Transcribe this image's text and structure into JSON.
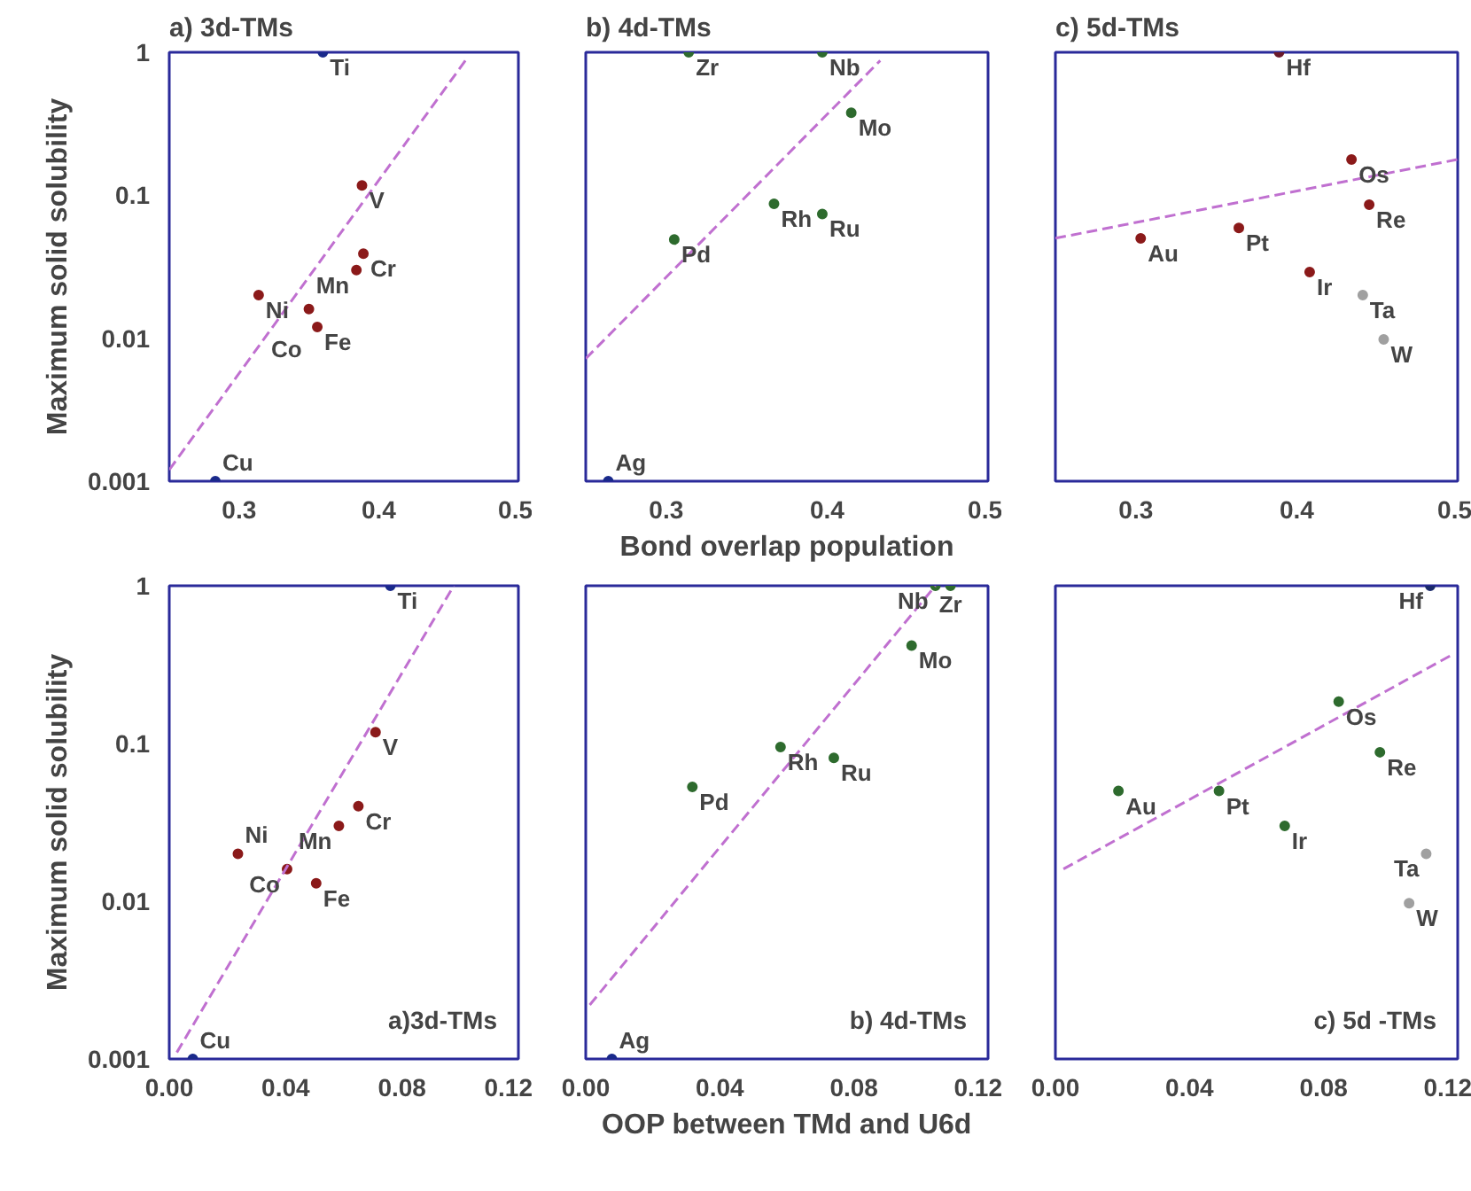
{
  "chart_data": [
    {
      "type": "scatter",
      "title": "a) 3d-TMs",
      "ylabel": "Maximum solid solubility",
      "log": true,
      "grid": false,
      "marker": "circle",
      "xlim": [
        0.25,
        0.5
      ],
      "xticks": [
        0.3,
        0.4,
        0.5
      ],
      "ylim": [
        0.001,
        1
      ],
      "yticks": [
        0.001,
        0.01,
        0.1,
        1
      ],
      "series": [
        {
          "x": [
            0.36,
            0.388,
            0.389,
            0.384,
            0.314,
            0.35,
            0.356,
            0.283
          ],
          "values": [
            1,
            0.117,
            0.039,
            0.03,
            0.02,
            0.016,
            0.012,
            0.001
          ],
          "colors": [
            "#1a2a8b",
            "#8b1a1a",
            "#8b1a1a",
            "#8b1a1a",
            "#8b1a1a",
            "#8b1a1a",
            "#8b1a1a",
            "#1a2a8b"
          ]
        },
        {
          "type": "line",
          "line_style": "dashed",
          "marker": "none",
          "color": "#c070d0",
          "x": [
            0.25,
            0.464
          ],
          "values": [
            0.0012,
            0.93
          ]
        }
      ],
      "annotations": [
        {
          "text": "Ti",
          "x": 0.36,
          "y": 1
        },
        {
          "text": "V",
          "x": 0.388,
          "y": 0.117
        },
        {
          "text": "Cr",
          "x": 0.389,
          "y": 0.039
        },
        {
          "text": "Mn",
          "x": 0.384,
          "y": 0.03
        },
        {
          "text": "Ni",
          "x": 0.314,
          "y": 0.02
        },
        {
          "text": "Co",
          "x": 0.35,
          "y": 0.016
        },
        {
          "text": "Fe",
          "x": 0.356,
          "y": 0.012
        },
        {
          "text": "Cu",
          "x": 0.283,
          "y": 0.001
        }
      ]
    },
    {
      "type": "scatter",
      "title": "b) 4d-TMs",
      "xlabel": "Bond overlap population",
      "log": true,
      "grid": false,
      "marker": "circle",
      "tick_labels": "x",
      "xlim": [
        0.25,
        0.5
      ],
      "xticks": [
        0.3,
        0.4,
        0.5
      ],
      "ylim": [
        0.001,
        1
      ],
      "yticks": [
        0.001,
        0.01,
        0.1,
        1
      ],
      "series": [
        {
          "x": [
            0.314,
            0.397,
            0.415,
            0.305,
            0.367,
            0.397,
            0.264
          ],
          "values": [
            1,
            1,
            0.377,
            0.049,
            0.087,
            0.074,
            0.001
          ],
          "colors": [
            "#2e6b2e",
            "#2e6b2e",
            "#2e6b2e",
            "#2e6b2e",
            "#2e6b2e",
            "#2e6b2e",
            "#1a2a8b"
          ]
        },
        {
          "type": "line",
          "line_style": "dashed",
          "marker": "none",
          "color": "#c070d0",
          "x": [
            0.25,
            0.433
          ],
          "values": [
            0.0072,
            0.875
          ]
        }
      ],
      "annotations": [
        {
          "text": "Zr",
          "x": 0.314,
          "y": 1
        },
        {
          "text": "Nb",
          "x": 0.397,
          "y": 1
        },
        {
          "text": "Mo",
          "x": 0.415,
          "y": 0.377
        },
        {
          "text": "Pd",
          "x": 0.305,
          "y": 0.049
        },
        {
          "text": "Rh",
          "x": 0.367,
          "y": 0.087
        },
        {
          "text": "Ru",
          "x": 0.397,
          "y": 0.074
        },
        {
          "text": "Ag",
          "x": 0.264,
          "y": 0.001
        }
      ]
    },
    {
      "type": "scatter",
      "title": "c) 5d-TMs",
      "log": true,
      "grid": false,
      "marker": "circle",
      "tick_labels": "x",
      "xlim": [
        0.25,
        0.5
      ],
      "xticks": [
        0.3,
        0.4,
        0.5
      ],
      "ylim": [
        0.001,
        1
      ],
      "yticks": [
        0.001,
        0.01,
        0.1,
        1
      ],
      "series": [
        {
          "x": [
            0.389,
            0.434,
            0.445,
            0.303,
            0.364,
            0.408,
            0.441,
            0.454
          ],
          "values": [
            1,
            0.178,
            0.086,
            0.05,
            0.059,
            0.029,
            0.02,
            0.0098
          ],
          "colors": [
            "#6b1a2a",
            "#8b1a1a",
            "#8b1a1a",
            "#8b1a1a",
            "#8b1a1a",
            "#8b1a1a",
            "#a0a0a0",
            "#a0a0a0"
          ]
        },
        {
          "type": "line",
          "line_style": "dashed",
          "marker": "none",
          "color": "#c070d0",
          "x": [
            0.25,
            0.5
          ],
          "values": [
            0.05,
            0.178
          ]
        }
      ],
      "annotations": [
        {
          "text": "Hf",
          "x": 0.389,
          "y": 1
        },
        {
          "text": "Os",
          "x": 0.434,
          "y": 0.178
        },
        {
          "text": "Re",
          "x": 0.445,
          "y": 0.086
        },
        {
          "text": "Au",
          "x": 0.303,
          "y": 0.05
        },
        {
          "text": "Pt",
          "x": 0.364,
          "y": 0.059
        },
        {
          "text": "Ir",
          "x": 0.408,
          "y": 0.029
        },
        {
          "text": "Ta",
          "x": 0.441,
          "y": 0.02
        },
        {
          "text": "W",
          "x": 0.454,
          "y": 0.0098
        }
      ]
    },
    {
      "type": "scatter",
      "ylabel": "Maximum solid solubility",
      "log": true,
      "grid": false,
      "marker": "circle",
      "xlim": [
        0,
        0.12
      ],
      "xticks": [
        {
          "value": 0,
          "label": "0.00"
        },
        {
          "value": 0.04,
          "label": "0.04"
        },
        {
          "value": 0.08,
          "label": "0.08"
        },
        {
          "value": 0.12,
          "label": "0.12"
        }
      ],
      "ylim": [
        0.001,
        1
      ],
      "yticks": [
        0.001,
        0.01,
        0.1,
        1
      ],
      "series": [
        {
          "x": [
            0.076,
            0.0709,
            0.065,
            0.0583,
            0.0405,
            0.0236,
            0.0505,
            0.0081
          ],
          "values": [
            1,
            0.118,
            0.04,
            0.03,
            0.016,
            0.02,
            0.013,
            0.001
          ],
          "colors": [
            "#1a2a8b",
            "#8b1a1a",
            "#8b1a1a",
            "#8b1a1a",
            "#8b1a1a",
            "#8b1a1a",
            "#8b1a1a",
            "#1a2a8b"
          ]
        },
        {
          "type": "line",
          "line_style": "dashed",
          "marker": "none",
          "color": "#c070d0",
          "x": [
            0.0026,
            0.0978
          ],
          "values": [
            0.0011,
            1
          ]
        }
      ],
      "annotations": [
        "a)3d-TMs",
        {
          "text": "Ti",
          "x": 0.076,
          "y": 1
        },
        {
          "text": "V",
          "x": 0.0709,
          "y": 0.118
        },
        {
          "text": "Cr",
          "x": 0.065,
          "y": 0.04
        },
        {
          "text": "Mn",
          "x": 0.0583,
          "y": 0.03
        },
        {
          "text": "Co",
          "x": 0.0405,
          "y": 0.016
        },
        {
          "text": "Ni",
          "x": 0.0236,
          "y": 0.02
        },
        {
          "text": "Fe",
          "x": 0.0505,
          "y": 0.013
        },
        {
          "text": "Cu",
          "x": 0.0081,
          "y": 0.001
        }
      ]
    },
    {
      "type": "scatter",
      "xlabel": "OOP between TMd and U6d",
      "log": true,
      "grid": false,
      "marker": "circle",
      "tick_labels": "x",
      "xlim": [
        0,
        0.12
      ],
      "xticks": [
        {
          "value": 0,
          "label": "0.00"
        },
        {
          "value": 0.04,
          "label": "0.04"
        },
        {
          "value": 0.08,
          "label": "0.08"
        },
        {
          "value": 0.12,
          "label": "0.12"
        }
      ],
      "ylim": [
        0.001,
        1
      ],
      "yticks": [
        0.001,
        0.01,
        0.1,
        1
      ],
      "series": [
        {
          "x": [
            0.1043,
            0.1088,
            0.0972,
            0.0581,
            0.074,
            0.0318,
            0.0078
          ],
          "values": [
            1,
            1,
            0.418,
            0.095,
            0.081,
            0.053,
            0.001
          ],
          "colors": [
            "#2e6b2e",
            "#2e6b2e",
            "#2e6b2e",
            "#2e6b2e",
            "#2e6b2e",
            "#2e6b2e",
            "#1a2a8b"
          ]
        },
        {
          "type": "line",
          "line_style": "dashed",
          "marker": "none",
          "color": "#c070d0",
          "x": [
            0.0012,
            0.1043
          ],
          "values": [
            0.0022,
            1
          ]
        }
      ],
      "annotations": [
        "b) 4d-TMs",
        {
          "text": "Nb",
          "x": 0.1043,
          "y": 1
        },
        {
          "text": "Zr",
          "x": 0.1088,
          "y": 1
        },
        {
          "text": "Mo",
          "x": 0.0972,
          "y": 0.418
        },
        {
          "text": "Rh",
          "x": 0.0581,
          "y": 0.095
        },
        {
          "text": "Ru",
          "x": 0.074,
          "y": 0.081
        },
        {
          "text": "Pd",
          "x": 0.0318,
          "y": 0.053
        },
        {
          "text": "Ag",
          "x": 0.0078,
          "y": 0.001
        }
      ]
    },
    {
      "type": "scatter",
      "log": true,
      "grid": false,
      "marker": "circle",
      "tick_labels": "x",
      "xlim": [
        0,
        0.12
      ],
      "xticks": [
        {
          "value": 0,
          "label": "0.00"
        },
        {
          "value": 0.04,
          "label": "0.04"
        },
        {
          "value": 0.08,
          "label": "0.08"
        },
        {
          "value": 0.12,
          "label": "0.12"
        }
      ],
      "ylim": [
        0.001,
        1
      ],
      "yticks": [
        0.001,
        0.01,
        0.1,
        1
      ],
      "series": [
        {
          "x": [
            0.1118,
            0.0845,
            0.0968,
            0.0188,
            0.0488,
            0.0684,
            0.1106,
            0.1055
          ],
          "values": [
            1,
            0.184,
            0.088,
            0.05,
            0.05,
            0.03,
            0.02,
            0.0097
          ],
          "colors": [
            "#1a2a6b",
            "#2e6b2e",
            "#2e6b2e",
            "#2e6b2e",
            "#2e6b2e",
            "#2e6b2e",
            "#a0a0a0",
            "#a0a0a0"
          ]
        },
        {
          "type": "line",
          "line_style": "dashed",
          "marker": "none",
          "color": "#c070d0",
          "x": [
            0.0024,
            0.1188
          ],
          "values": [
            0.016,
            0.37
          ]
        }
      ],
      "annotations": [
        "c) 5d -TMs",
        {
          "text": "Hf",
          "x": 0.1118,
          "y": 1
        },
        {
          "text": "Os",
          "x": 0.0845,
          "y": 0.184
        },
        {
          "text": "Re",
          "x": 0.0968,
          "y": 0.088
        },
        {
          "text": "Au",
          "x": 0.0188,
          "y": 0.05
        },
        {
          "text": "Pt",
          "x": 0.0488,
          "y": 0.05
        },
        {
          "text": "Ir",
          "x": 0.0684,
          "y": 0.03
        },
        {
          "text": "Ta",
          "x": 0.1106,
          "y": 0.02
        },
        {
          "text": "W",
          "x": 0.1055,
          "y": 0.0097
        }
      ]
    }
  ]
}
